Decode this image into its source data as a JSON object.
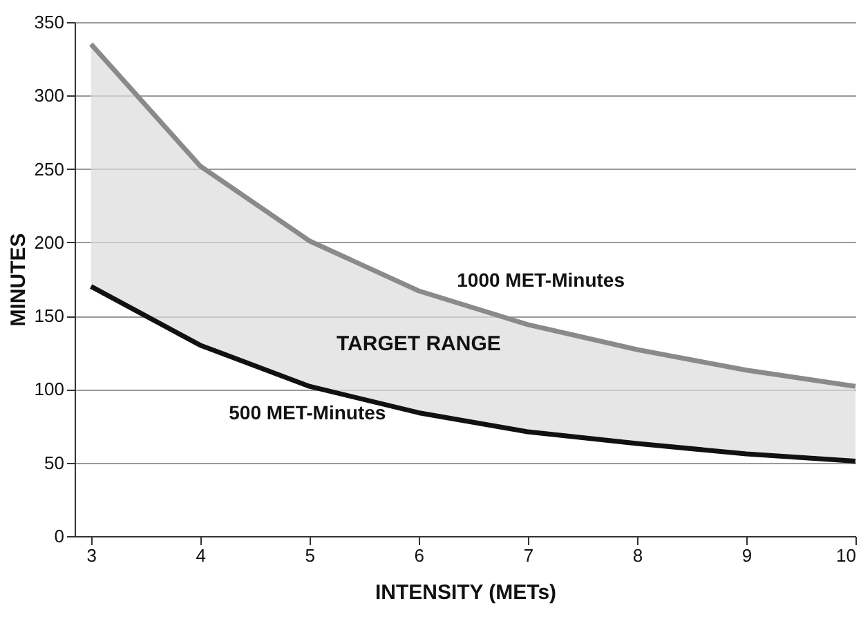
{
  "chart_data": {
    "type": "line",
    "xlabel": "INTENSITY (METs)",
    "ylabel": "MINUTES",
    "x": [
      3,
      4,
      5,
      6,
      7,
      8,
      9,
      10
    ],
    "series": [
      {
        "name": "1000 MET-Minutes",
        "color": "#8a8a8a",
        "values": [
          335,
          252,
          201,
          167,
          144,
          127,
          113,
          102
        ],
        "lower": [
          170,
          130,
          102,
          84,
          71,
          63,
          56,
          51
        ],
        "upper": [
          335,
          252,
          201,
          167,
          144,
          127,
          113,
          102
        ]
      },
      {
        "name": "500 MET-Minutes",
        "color": "#111111",
        "values": [
          170,
          130,
          102,
          84,
          71,
          63,
          56,
          51
        ]
      }
    ],
    "xlim": [
      2.85,
      10
    ],
    "xticks": [
      3,
      4,
      5,
      6,
      7,
      8,
      9,
      10
    ],
    "ylim": [
      0,
      350
    ],
    "yticks": [
      0,
      50,
      100,
      150,
      200,
      250,
      300,
      350
    ],
    "grid": "y",
    "legend": false,
    "marker": "none",
    "line_style": "solid",
    "annotations": [
      "TARGET RANGE"
    ]
  }
}
